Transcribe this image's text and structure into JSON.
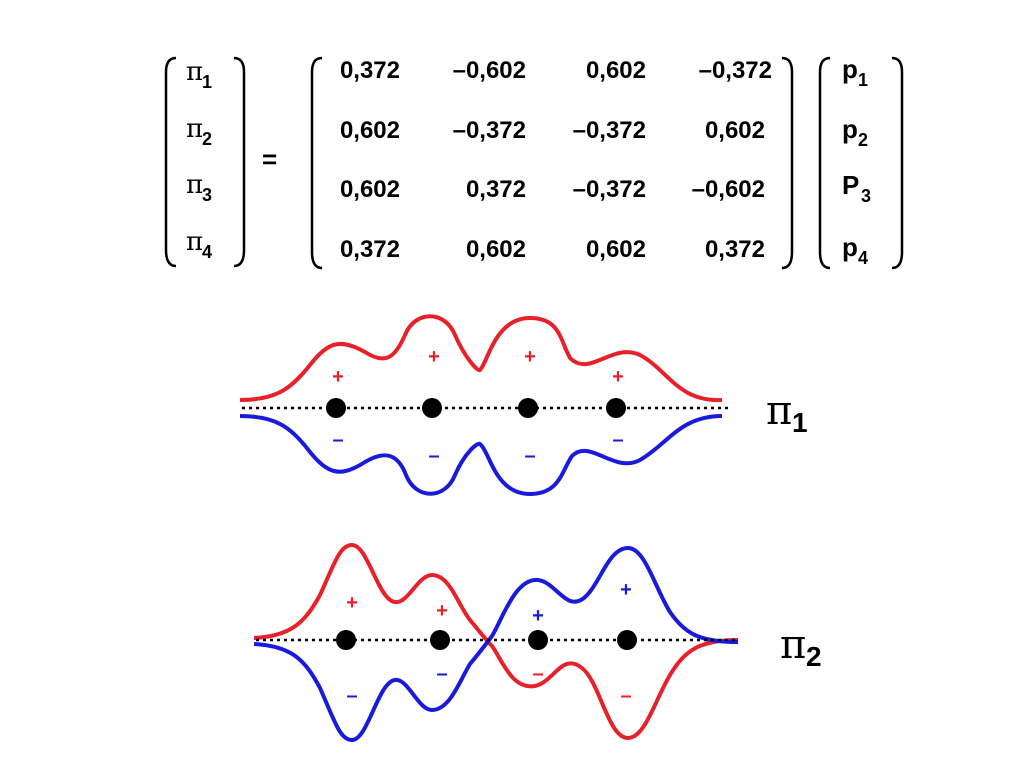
{
  "equation": {
    "left_vector": [
      {
        "symbol": "π",
        "sub": "1"
      },
      {
        "symbol": "π",
        "sub": "2"
      },
      {
        "symbol": "π",
        "sub": "3"
      },
      {
        "symbol": "π",
        "sub": "4"
      }
    ],
    "equals": "=",
    "matrix": [
      [
        "0,372",
        "–0,602",
        "0,602",
        "–0,372"
      ],
      [
        "0,602",
        "–0,372",
        "–0,372",
        "0,602"
      ],
      [
        "0,602",
        "0,372",
        "–0,372",
        "–0,602"
      ],
      [
        "0,372",
        "0,602",
        "0,602",
        "0,372"
      ]
    ],
    "right_vector": [
      {
        "symbol": "p",
        "sub": "1"
      },
      {
        "symbol": "p",
        "sub": "2"
      },
      {
        "symbol": "P",
        "sub": "3"
      },
      {
        "symbol": "p",
        "sub": "4"
      }
    ]
  },
  "orbitals": [
    {
      "label_symbol": "π",
      "label_sub": "1",
      "signs_top": [
        "+",
        "+",
        "+",
        "+"
      ],
      "signs_bottom": [
        "–",
        "–",
        "–",
        "–"
      ]
    },
    {
      "label_symbol": "π",
      "label_sub": "2",
      "signs_top": [
        "+",
        "+",
        "+",
        "+"
      ],
      "signs_bottom": [
        "–",
        "–",
        "–",
        "–"
      ]
    }
  ],
  "colors": {
    "red": "#e8202a",
    "blue": "#1a1adc",
    "black": "#000000"
  }
}
